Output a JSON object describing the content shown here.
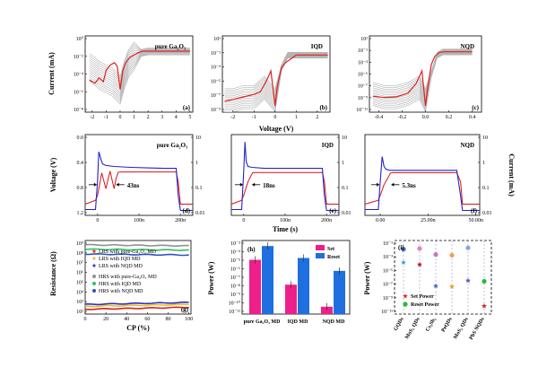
{
  "chart_data": [
    {
      "type": "line",
      "panel": "(a)",
      "annotation": "pure Ga₂O₃",
      "xlabel": "",
      "ylabel": "Current (mA)",
      "x_ticks": [
        "-2",
        "-1",
        "0",
        "1",
        "2",
        "3",
        "4",
        "5"
      ],
      "y_ticks": [
        "10⁰",
        "10⁻²",
        "10⁻⁴",
        "10⁻⁶",
        "10⁻⁸"
      ],
      "xlim": [
        -2.5,
        5.2
      ],
      "ylim": [
        -9,
        1
      ],
      "y_scale": "log",
      "series": [
        {
          "color": "#b4b4b4",
          "style": "cycles",
          "x": [
            -2.2,
            -1.8,
            -1.5,
            -1.0,
            -0.5,
            0,
            0.3,
            0.6,
            1.0,
            1.5,
            2.0,
            2.5,
            3.0,
            3.5,
            4.0,
            4.5,
            5.0
          ],
          "y": [
            -3,
            -3.5,
            -4,
            -4.5,
            -5,
            -6,
            -4,
            -2.5,
            -1.5,
            -1.2,
            -1,
            -1,
            -1,
            -1,
            -1,
            -1,
            -1
          ]
        },
        {
          "color": "#e02020",
          "style": "representative",
          "x": [
            -2.2,
            -1.8,
            -1.5,
            -1.2,
            -1.0,
            -0.7,
            -0.4,
            -0.2,
            0,
            0.2,
            0.4,
            0.7,
            1.0,
            1.3,
            1.6,
            2.0,
            2.5,
            3.0,
            3.5,
            4.0,
            4.5,
            5.0
          ],
          "y": [
            -4.8,
            -5.2,
            -4.5,
            -5,
            -3.5,
            -2.8,
            -2.5,
            -3,
            -6,
            -3.5,
            -2.5,
            -1.8,
            -1.5,
            -1.2,
            -1,
            -1,
            -1,
            -1,
            -1,
            -1,
            -1,
            -1
          ]
        }
      ]
    },
    {
      "type": "line",
      "panel": "(b)",
      "annotation": "IQD",
      "xlabel": "Voltage (V)",
      "ylabel": "",
      "x_ticks": [
        "-2",
        "-1",
        "0",
        "1",
        "2"
      ],
      "y_ticks": [
        "10¹",
        "10⁻¹",
        "10⁻³",
        "10⁻⁵",
        "10⁻⁷",
        "10⁻⁹"
      ],
      "xlim": [
        -2.5,
        2.6
      ],
      "ylim": [
        -10,
        2
      ],
      "y_scale": "log",
      "series": [
        {
          "color": "#b4b4b4",
          "style": "cycles",
          "x": [
            -2.4,
            -2.0,
            -1.5,
            -1.0,
            -0.5,
            0,
            0.3,
            0.6,
            1.0,
            1.5,
            2.0,
            2.5
          ],
          "y": [
            -8,
            -8,
            -7.5,
            -7.5,
            -6,
            -8,
            -3,
            -1,
            -1,
            -1,
            -1,
            -1
          ]
        },
        {
          "color": "#e02020",
          "style": "representative",
          "x": [
            -2.4,
            -2.0,
            -1.5,
            -1.0,
            -0.7,
            -0.4,
            -0.2,
            0,
            0.1,
            0.3,
            0.5,
            0.8,
            1.0,
            1.5,
            2.0,
            2.5
          ],
          "y": [
            -8.3,
            -8,
            -7.6,
            -7.2,
            -6.8,
            -5,
            -3.5,
            -9,
            -6,
            -3,
            -2.2,
            -1.5,
            -1,
            -1,
            -1,
            -1
          ]
        }
      ]
    },
    {
      "type": "line",
      "panel": "(c)",
      "annotation": "NQD",
      "xlabel": "",
      "ylabel": "",
      "x_ticks": [
        "-0.4",
        "-0.2",
        "0.0",
        "0.2",
        "0.4"
      ],
      "y_ticks": [
        "10¹",
        "10⁻¹",
        "10⁻³",
        "10⁻⁵",
        "10⁻⁷",
        "10⁻⁹",
        "10⁻¹¹"
      ],
      "xlim": [
        -0.48,
        0.48
      ],
      "ylim": [
        -11,
        1
      ],
      "y_scale": "log",
      "series": [
        {
          "color": "#b4b4b4",
          "style": "cycles",
          "x": [
            -0.45,
            -0.35,
            -0.25,
            -0.15,
            -0.05,
            0,
            0.05,
            0.1,
            0.15,
            0.2,
            0.3,
            0.4
          ],
          "y": [
            -8,
            -8.5,
            -8.5,
            -8,
            -7,
            -9,
            -5,
            -2,
            -1.5,
            -1.5,
            -1.5,
            -1.5
          ]
        },
        {
          "color": "#e02020",
          "style": "representative",
          "x": [
            -0.45,
            -0.35,
            -0.25,
            -0.15,
            -0.08,
            -0.03,
            0,
            0.02,
            0.05,
            0.08,
            0.12,
            0.16,
            0.2,
            0.3,
            0.4
          ],
          "y": [
            -8.5,
            -8.7,
            -8.6,
            -8,
            -6.5,
            -4.5,
            -10,
            -7,
            -3.5,
            -2.2,
            -1.6,
            -1.5,
            -1.5,
            -1.5,
            -1.5
          ]
        }
      ]
    },
    {
      "type": "line",
      "panel": "(d)",
      "annotation": "pure Ga₂O₃",
      "time_label": "43ns",
      "ylabel": "Voltage (V)",
      "ylabel_right": "",
      "x_ticks": [
        "0",
        "100n",
        "200n"
      ],
      "y_ticks": [
        "0.0",
        "0.4",
        "0.8",
        "1.2"
      ],
      "y_right_ticks": [
        "10",
        "1",
        "0.1",
        "0.01"
      ],
      "xlim": [
        -30,
        230
      ],
      "ylim": [
        -0.1,
        1.55
      ],
      "series": [
        {
          "color": "#2222cc",
          "axis": "left",
          "x": [
            -30,
            -5,
            0,
            3,
            8,
            12,
            20,
            40,
            80,
            120,
            160,
            190,
            195,
            200,
            230
          ],
          "y": [
            0.02,
            0.02,
            0.6,
            1.2,
            1.05,
            0.95,
            0.92,
            0.9,
            0.88,
            0.87,
            0.86,
            0.86,
            0.3,
            0.0,
            0.0
          ]
        },
        {
          "color": "#dd1111",
          "axis": "right",
          "x": [
            -30,
            -5,
            0,
            10,
            20,
            30,
            40,
            45,
            50,
            60,
            100,
            150,
            190,
            195,
            200,
            230
          ],
          "y": [
            0.02,
            0.03,
            0.05,
            0.5,
            0.1,
            0.6,
            0.1,
            0.3,
            0.55,
            0.56,
            0.56,
            0.56,
            0.56,
            0.2,
            0.02,
            0.02
          ]
        }
      ]
    },
    {
      "type": "line",
      "panel": "(e)",
      "annotation": "IQD",
      "time_label": "18ns",
      "xlabel": "Time (s)",
      "x_ticks": [
        "0",
        "100n",
        "200n"
      ],
      "y_right_ticks": [
        "10",
        "1",
        "0.1",
        "0.01"
      ],
      "xlim": [
        -30,
        230
      ],
      "ylim": [
        -0.1,
        1.55
      ],
      "series": [
        {
          "color": "#2222cc",
          "axis": "left",
          "x": [
            -30,
            -5,
            0,
            3,
            6,
            10,
            20,
            50,
            100,
            150,
            190,
            195,
            200,
            230
          ],
          "y": [
            0.02,
            0.02,
            0.8,
            1.4,
            1.0,
            0.9,
            0.88,
            0.86,
            0.86,
            0.86,
            0.86,
            0.3,
            0.0,
            0.0
          ]
        },
        {
          "color": "#dd1111",
          "axis": "right",
          "x": [
            -30,
            -5,
            0,
            10,
            18,
            22,
            30,
            60,
            100,
            150,
            190,
            195,
            200,
            230
          ],
          "y": [
            0.02,
            0.03,
            0.05,
            0.2,
            0.4,
            0.52,
            0.53,
            0.53,
            0.53,
            0.53,
            0.53,
            0.2,
            0.02,
            0.02
          ]
        }
      ]
    },
    {
      "type": "line",
      "panel": "(f)",
      "annotation": "NQD",
      "time_label": "5.3ns",
      "ylabel_right": "Current (mA)",
      "x_ticks": [
        "0.00",
        "25.00n",
        "50.00n"
      ],
      "y_right_ticks": [
        "10",
        "1",
        "0.1",
        "0.01"
      ],
      "xlim": [
        -8,
        52
      ],
      "ylim": [
        -0.1,
        1.55
      ],
      "series": [
        {
          "color": "#2222cc",
          "axis": "left",
          "x": [
            -8,
            -1,
            0,
            1,
            2,
            3,
            5,
            10,
            20,
            30,
            40,
            42,
            43,
            52
          ],
          "y": [
            0.02,
            0.02,
            0.6,
            1.1,
            0.9,
            0.84,
            0.82,
            0.82,
            0.82,
            0.82,
            0.82,
            0.3,
            0.0,
            0.0
          ]
        },
        {
          "color": "#dd1111",
          "axis": "right",
          "x": [
            -8,
            -1,
            0,
            2,
            4,
            5.3,
            7,
            10,
            20,
            30,
            40,
            42,
            43,
            52
          ],
          "y": [
            0.02,
            0.03,
            0.05,
            0.15,
            0.3,
            0.5,
            0.52,
            0.52,
            0.52,
            0.52,
            0.52,
            0.2,
            0.02,
            0.02
          ]
        }
      ]
    },
    {
      "type": "line",
      "panel": "(g)",
      "xlabel": "CP (%)",
      "ylabel": "Resistance (Ω)",
      "x_ticks": [
        "0",
        "20",
        "40",
        "60",
        "80",
        "100"
      ],
      "y_ticks": [
        "10⁹",
        "10⁸",
        "10⁷",
        "10⁶",
        "10⁵",
        "10⁴",
        "10³",
        "10²"
      ],
      "xlim": [
        0,
        102
      ],
      "ylim": [
        1.8,
        9.4
      ],
      "y_scale": "log",
      "legend": "bottom-left",
      "series": [
        {
          "name": "LRS with pure-Ga₂O₃ MD",
          "color": "#e02020",
          "marker": "star",
          "x": [
            0,
            100
          ],
          "y": [
            2.3,
            2.5
          ]
        },
        {
          "name": "LRS with IQD MD",
          "color": "#e8c020",
          "marker": "star",
          "x": [
            0,
            100
          ],
          "y": [
            2.6,
            2.8
          ]
        },
        {
          "name": "LRS with NQD MD",
          "color": "#3030c0",
          "marker": "star",
          "x": [
            0,
            100
          ],
          "y": [
            2.8,
            3.0
          ]
        },
        {
          "name": "HRS with pure-Ga₂O₃ MD",
          "color": "#909090",
          "marker": "dot",
          "x": [
            0,
            100
          ],
          "y": [
            8.95,
            8.85
          ]
        },
        {
          "name": "HRS with IQD MD",
          "color": "#30c060",
          "marker": "dot",
          "x": [
            0,
            100
          ],
          "y": [
            8.5,
            8.4
          ]
        },
        {
          "name": "HRS with NQD MD",
          "color": "#3050c0",
          "marker": "dot",
          "x": [
            0,
            100
          ],
          "y": [
            8.0,
            7.9
          ]
        }
      ]
    },
    {
      "type": "bar",
      "panel": "(h)",
      "ylabel": "Power (W)",
      "categories": [
        "pure Ga₂O₃ MD",
        "IQD MD",
        "NQD MD"
      ],
      "y_ticks": [
        "10⁻³",
        "10⁻⁴",
        "10⁻⁵",
        "10⁻⁶",
        "10⁻⁷",
        "10⁻⁸",
        "10⁻⁹",
        "10⁻¹⁰",
        "10⁻¹¹"
      ],
      "ylim": [
        -11,
        -3
      ],
      "y_scale": "log",
      "legend": "top-right",
      "series": [
        {
          "name": "Set",
          "color": "#ee1f8a",
          "values": [
            -5.1,
            -7.8,
            -10.2
          ]
        },
        {
          "name": "Reset",
          "color": "#1f6fe0",
          "values": [
            -3.6,
            -4.9,
            -6.3
          ]
        }
      ]
    },
    {
      "type": "scatter",
      "panel": "(i)",
      "ylabel": "Power (W)",
      "categories": [
        "GQDs",
        "MoS₂ QDs",
        "Cs₃Sb₂",
        "PeQDs",
        "MoS₂ QDs",
        "PbS NQDs"
      ],
      "highlight_category": "PbS NQDs",
      "y_ticks": [
        "10⁻¹",
        "10⁻³",
        "10⁻⁵",
        "10⁻⁷",
        "10⁻⁹",
        "10⁻¹¹"
      ],
      "ylim": [
        -12,
        -1
      ],
      "y_scale": "log",
      "legend": "bottom-left",
      "series": [
        {
          "name": "Set Power",
          "marker": "star",
          "values": [
            -4.3,
            -4.6,
            -7.8,
            -7.9,
            -7.0,
            -10.8
          ],
          "colors": [
            "#3aa0e0",
            "#c01030",
            "#4060d0",
            "#e8a020",
            "#6050c0",
            "#e02020"
          ]
        },
        {
          "name": "Reset Power",
          "marker": "dot",
          "values": [
            -2.3,
            -2.2,
            -3.1,
            -3.2,
            -2.1,
            -7.1
          ],
          "colors": [
            "#3a70d0",
            "#e080c0",
            "#d070c0",
            "#f0a060",
            "#90a0e0",
            "#20c030"
          ]
        }
      ]
    }
  ]
}
